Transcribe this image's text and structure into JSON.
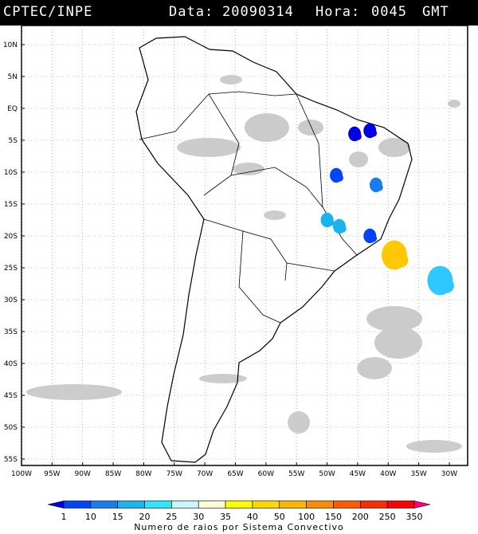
{
  "header": {
    "source": "CPTEC/INPE",
    "date_label": "Data:",
    "date": "20090314",
    "hour_label": "Hora:",
    "hour": "0045",
    "zone": "GMT"
  },
  "axes": {
    "lat_labels": [
      "10N",
      "5N",
      "EQ",
      "5S",
      "10S",
      "15S",
      "20S",
      "25S",
      "30S",
      "35S",
      "40S",
      "45S",
      "50S",
      "55S"
    ],
    "lon_labels": [
      "100W",
      "95W",
      "90W",
      "85W",
      "80W",
      "75W",
      "70W",
      "65W",
      "60W",
      "55W",
      "50W",
      "45W",
      "40W",
      "35W",
      "30W"
    ],
    "lat_range": [
      -56,
      13
    ],
    "lon_range": [
      -100,
      -27
    ],
    "grid": true
  },
  "colorbar": {
    "title": "Numero de raios por Sistema Convectivo",
    "ticks": [
      "1",
      "10",
      "15",
      "20",
      "25",
      "30",
      "35",
      "40",
      "50",
      "100",
      "150",
      "200",
      "250",
      "350"
    ],
    "colors": [
      "#0000e6",
      "#0044ff",
      "#1a7cf0",
      "#19b3f0",
      "#2ee6ff",
      "#c8f5ff",
      "#fffad2",
      "#ffff00",
      "#ffd700",
      "#ffb400",
      "#ff8c00",
      "#ff5a00",
      "#ff2a00",
      "#ff0000",
      "#ff0080"
    ]
  },
  "systems": [
    {
      "lon": -45.5,
      "lat": -4.0,
      "count_class": "1-10",
      "color": "#0000e6"
    },
    {
      "lon": -43.0,
      "lat": -3.5,
      "count_class": "1-10",
      "color": "#0000e6"
    },
    {
      "lon": -48.5,
      "lat": -10.5,
      "count_class": "10-15",
      "color": "#0044ff"
    },
    {
      "lon": -42.0,
      "lat": -12.0,
      "count_class": "15-20",
      "color": "#1a7cf0"
    },
    {
      "lon": -50.0,
      "lat": -17.5,
      "count_class": "20-25",
      "color": "#19b3f0"
    },
    {
      "lon": -48.0,
      "lat": -18.5,
      "count_class": "20-25",
      "color": "#19b3f0"
    },
    {
      "lon": -43.0,
      "lat": -20.0,
      "count_class": "10-15",
      "color": "#0044ff"
    },
    {
      "lon": -39.0,
      "lat": -23.0,
      "count_class": "50-100",
      "color": "#ffc800"
    },
    {
      "lon": -31.5,
      "lat": -27.0,
      "count_class": "20-25",
      "color": "#2ec8ff"
    }
  ]
}
